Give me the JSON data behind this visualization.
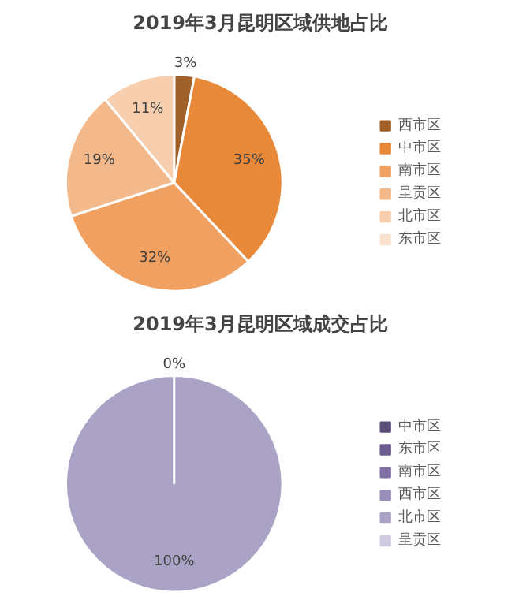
{
  "chart_data": [
    {
      "type": "pie",
      "title": "2019年3月昆明区域供地占比",
      "categories": [
        "西市区",
        "中市区",
        "南市区",
        "呈贡区",
        "北市区",
        "东市区"
      ],
      "values": [
        3,
        35,
        32,
        19,
        11,
        0
      ],
      "colors": [
        "#a0622a",
        "#e8893a",
        "#f0a060",
        "#f4b98a",
        "#f7cfae",
        "#fae2d0"
      ],
      "value_labels": [
        "3%",
        "35%",
        "32%",
        "19%",
        "11%",
        null
      ],
      "legend": "right"
    },
    {
      "type": "pie",
      "title": "2019年3月昆明区域成交占比",
      "categories": [
        "中市区",
        "东市区",
        "南市区",
        "西市区",
        "北市区",
        "呈贡区"
      ],
      "values": [
        0,
        0,
        0,
        0,
        100,
        0
      ],
      "colors": [
        "#5b4e7a",
        "#6b5c8f",
        "#8070a5",
        "#9a8fba",
        "#aba3c6",
        "#d0cbe0"
      ],
      "value_labels": [
        "0%",
        null,
        null,
        null,
        "100%",
        null
      ],
      "legend": "right"
    }
  ]
}
